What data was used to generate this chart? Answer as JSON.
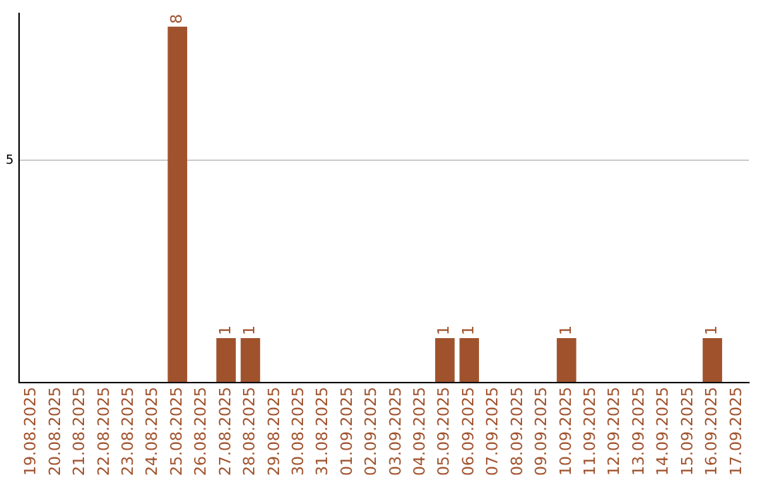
{
  "chart_data": {
    "type": "bar",
    "categories": [
      "19.08.2025",
      "20.08.2025",
      "21.08.2025",
      "22.08.2025",
      "23.08.2025",
      "24.08.2025",
      "25.08.2025",
      "26.08.2025",
      "27.08.2025",
      "28.08.2025",
      "29.08.2025",
      "30.08.2025",
      "31.08.2025",
      "01.09.2025",
      "02.09.2025",
      "03.09.2025",
      "04.09.2025",
      "05.09.2025",
      "06.09.2025",
      "07.09.2025",
      "08.09.2025",
      "09.09.2025",
      "10.09.2025",
      "11.09.2025",
      "12.09.2025",
      "13.09.2025",
      "14.09.2025",
      "15.09.2025",
      "16.09.2025",
      "17.09.2025"
    ],
    "values": [
      0,
      0,
      0,
      0,
      0,
      0,
      8,
      0,
      1,
      1,
      0,
      0,
      0,
      0,
      0,
      0,
      0,
      1,
      1,
      0,
      0,
      0,
      1,
      0,
      0,
      0,
      0,
      0,
      1,
      0
    ],
    "value_labels": [
      null,
      null,
      null,
      null,
      null,
      null,
      "8",
      null,
      "1",
      "1",
      null,
      null,
      null,
      null,
      null,
      null,
      null,
      "1",
      "1",
      null,
      null,
      null,
      "1",
      null,
      null,
      null,
      null,
      null,
      "1",
      null
    ],
    "color": "#a0522d",
    "ylim": [
      0,
      8.3
    ],
    "yticks": [
      {
        "value": 0,
        "label": null
      },
      5
    ],
    "grid": "y",
    "legend": false
  }
}
